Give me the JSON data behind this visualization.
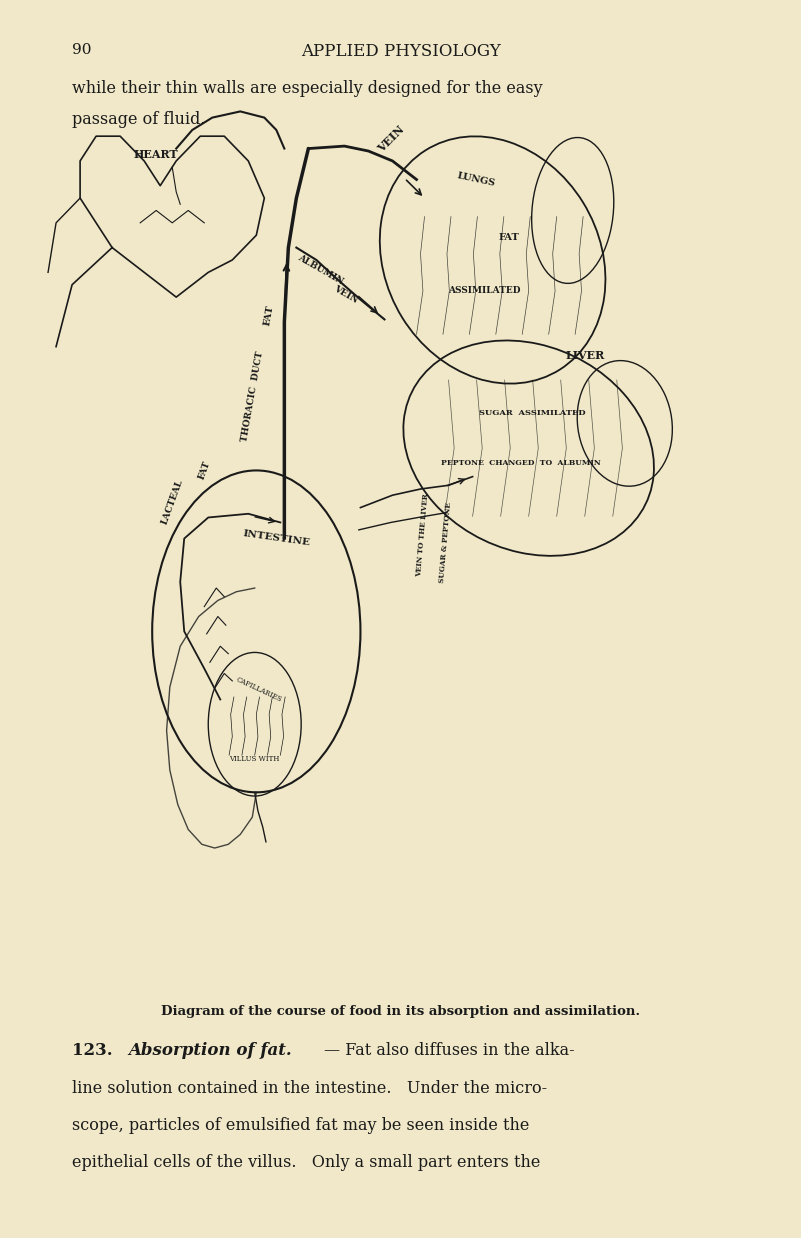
{
  "bg_color": "#f0e8c8",
  "page_num": "90",
  "header": "APPLIED PHYSIOLOGY",
  "top_text_line1": "while their thin walls are especially designed for the easy",
  "top_text_line2": "passage of fluid.",
  "caption": "Diagram of the course of food in its absorption and assimilation.",
  "section_num": "123.",
  "section_title": "Absorption of fat.",
  "section_dash": "—",
  "body_line1": "Fat also diffuses in the alka-",
  "body_line2": "line solution contained in the intestine.   Under the micro-",
  "body_line3": "scope, particles of emulsified fat may be seen inside the",
  "body_line4": "epithelial cells of the villus.   Only a small part enters the",
  "text_color": "#1a1a1a",
  "line_color": "#1a1a1a"
}
